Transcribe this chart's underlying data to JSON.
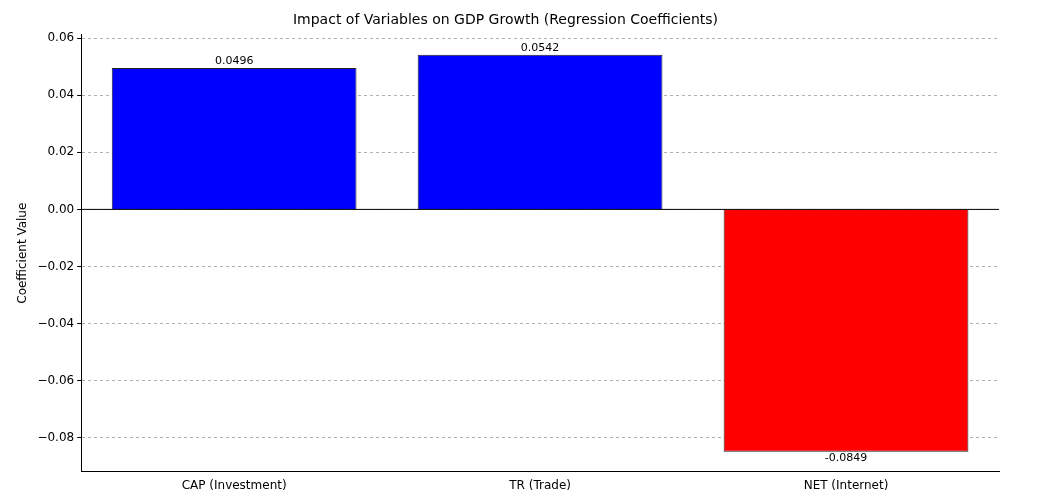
{
  "chart_data": {
    "type": "bar",
    "title": "Impact of Variables on GDP Growth (Regression Coefficients)",
    "ylabel": "Coefficient Value",
    "categories": [
      "CAP (Investment)",
      "TR (Trade)",
      "NET (Internet)"
    ],
    "values": [
      0.0496,
      0.0542,
      -0.0849
    ],
    "colors": [
      "#0000ff",
      "#0000ff",
      "#ff0000"
    ],
    "ylim": [
      -0.0919,
      0.0612
    ],
    "yticks": [
      {
        "value": -0.08,
        "label": "−0.08"
      },
      {
        "value": -0.06,
        "label": "−0.06"
      },
      {
        "value": -0.04,
        "label": "−0.04"
      },
      {
        "value": -0.02,
        "label": "−0.02"
      },
      {
        "value": 0,
        "label": "0.00"
      },
      {
        "value": 0.02,
        "label": "0.02"
      },
      {
        "value": 0.04,
        "label": "0.04"
      },
      {
        "value": 0.06,
        "label": "0.06"
      }
    ],
    "grid": "y",
    "data_labels": true,
    "ref_lines": [
      {
        "axis": "y",
        "value": 0,
        "color": "#000000"
      }
    ]
  }
}
